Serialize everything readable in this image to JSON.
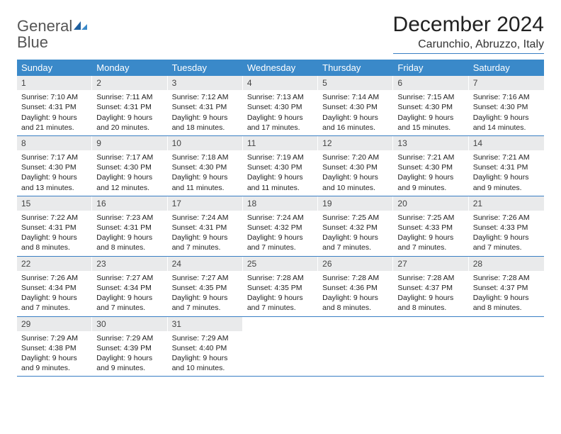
{
  "logo": {
    "line1": "General",
    "line2": "Blue"
  },
  "title": "December 2024",
  "location": "Carunchio, Abruzzo, Italy",
  "colors": {
    "header_bg": "#3a89c9",
    "accent": "#3a7fc4",
    "daynum_bg": "#e9eaeb",
    "text": "#222222",
    "bg": "#ffffff"
  },
  "weekdays": [
    "Sunday",
    "Monday",
    "Tuesday",
    "Wednesday",
    "Thursday",
    "Friday",
    "Saturday"
  ],
  "weeks": [
    [
      {
        "n": "1",
        "sr": "7:10 AM",
        "ss": "4:31 PM",
        "dl": "9 hours and 21 minutes."
      },
      {
        "n": "2",
        "sr": "7:11 AM",
        "ss": "4:31 PM",
        "dl": "9 hours and 20 minutes."
      },
      {
        "n": "3",
        "sr": "7:12 AM",
        "ss": "4:31 PM",
        "dl": "9 hours and 18 minutes."
      },
      {
        "n": "4",
        "sr": "7:13 AM",
        "ss": "4:30 PM",
        "dl": "9 hours and 17 minutes."
      },
      {
        "n": "5",
        "sr": "7:14 AM",
        "ss": "4:30 PM",
        "dl": "9 hours and 16 minutes."
      },
      {
        "n": "6",
        "sr": "7:15 AM",
        "ss": "4:30 PM",
        "dl": "9 hours and 15 minutes."
      },
      {
        "n": "7",
        "sr": "7:16 AM",
        "ss": "4:30 PM",
        "dl": "9 hours and 14 minutes."
      }
    ],
    [
      {
        "n": "8",
        "sr": "7:17 AM",
        "ss": "4:30 PM",
        "dl": "9 hours and 13 minutes."
      },
      {
        "n": "9",
        "sr": "7:17 AM",
        "ss": "4:30 PM",
        "dl": "9 hours and 12 minutes."
      },
      {
        "n": "10",
        "sr": "7:18 AM",
        "ss": "4:30 PM",
        "dl": "9 hours and 11 minutes."
      },
      {
        "n": "11",
        "sr": "7:19 AM",
        "ss": "4:30 PM",
        "dl": "9 hours and 11 minutes."
      },
      {
        "n": "12",
        "sr": "7:20 AM",
        "ss": "4:30 PM",
        "dl": "9 hours and 10 minutes."
      },
      {
        "n": "13",
        "sr": "7:21 AM",
        "ss": "4:30 PM",
        "dl": "9 hours and 9 minutes."
      },
      {
        "n": "14",
        "sr": "7:21 AM",
        "ss": "4:31 PM",
        "dl": "9 hours and 9 minutes."
      }
    ],
    [
      {
        "n": "15",
        "sr": "7:22 AM",
        "ss": "4:31 PM",
        "dl": "9 hours and 8 minutes."
      },
      {
        "n": "16",
        "sr": "7:23 AM",
        "ss": "4:31 PM",
        "dl": "9 hours and 8 minutes."
      },
      {
        "n": "17",
        "sr": "7:24 AM",
        "ss": "4:31 PM",
        "dl": "9 hours and 7 minutes."
      },
      {
        "n": "18",
        "sr": "7:24 AM",
        "ss": "4:32 PM",
        "dl": "9 hours and 7 minutes."
      },
      {
        "n": "19",
        "sr": "7:25 AM",
        "ss": "4:32 PM",
        "dl": "9 hours and 7 minutes."
      },
      {
        "n": "20",
        "sr": "7:25 AM",
        "ss": "4:33 PM",
        "dl": "9 hours and 7 minutes."
      },
      {
        "n": "21",
        "sr": "7:26 AM",
        "ss": "4:33 PM",
        "dl": "9 hours and 7 minutes."
      }
    ],
    [
      {
        "n": "22",
        "sr": "7:26 AM",
        "ss": "4:34 PM",
        "dl": "9 hours and 7 minutes."
      },
      {
        "n": "23",
        "sr": "7:27 AM",
        "ss": "4:34 PM",
        "dl": "9 hours and 7 minutes."
      },
      {
        "n": "24",
        "sr": "7:27 AM",
        "ss": "4:35 PM",
        "dl": "9 hours and 7 minutes."
      },
      {
        "n": "25",
        "sr": "7:28 AM",
        "ss": "4:35 PM",
        "dl": "9 hours and 7 minutes."
      },
      {
        "n": "26",
        "sr": "7:28 AM",
        "ss": "4:36 PM",
        "dl": "9 hours and 8 minutes."
      },
      {
        "n": "27",
        "sr": "7:28 AM",
        "ss": "4:37 PM",
        "dl": "9 hours and 8 minutes."
      },
      {
        "n": "28",
        "sr": "7:28 AM",
        "ss": "4:37 PM",
        "dl": "9 hours and 8 minutes."
      }
    ],
    [
      {
        "n": "29",
        "sr": "7:29 AM",
        "ss": "4:38 PM",
        "dl": "9 hours and 9 minutes."
      },
      {
        "n": "30",
        "sr": "7:29 AM",
        "ss": "4:39 PM",
        "dl": "9 hours and 9 minutes."
      },
      {
        "n": "31",
        "sr": "7:29 AM",
        "ss": "4:40 PM",
        "dl": "9 hours and 10 minutes."
      },
      null,
      null,
      null,
      null
    ]
  ],
  "labels": {
    "sunrise": "Sunrise:",
    "sunset": "Sunset:",
    "daylight": "Daylight:"
  }
}
